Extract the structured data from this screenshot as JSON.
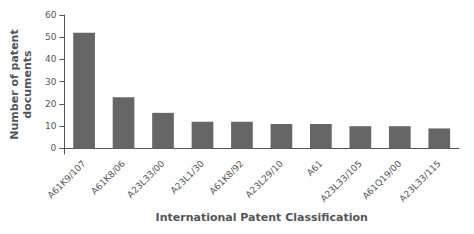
{
  "chart_data": {
    "type": "bar",
    "categories": [
      "A61K9/107",
      "A61K8/06",
      "A23L33/00",
      "A23L1/30",
      "A61K8/92",
      "A23L29/10",
      "A61",
      "A23L33/105",
      "A61Q19/00",
      "A23L33/115"
    ],
    "values": [
      52,
      23,
      16,
      12,
      12,
      11,
      11,
      10,
      10,
      9
    ],
    "color": "#666666",
    "xlabel": "International Patent Classification",
    "ylabel": "Number of patent\ndocuments",
    "ylim": [
      -2.5,
      60
    ],
    "yticks": [
      0,
      10,
      20,
      30,
      40,
      50,
      60
    ],
    "grid": false
  }
}
